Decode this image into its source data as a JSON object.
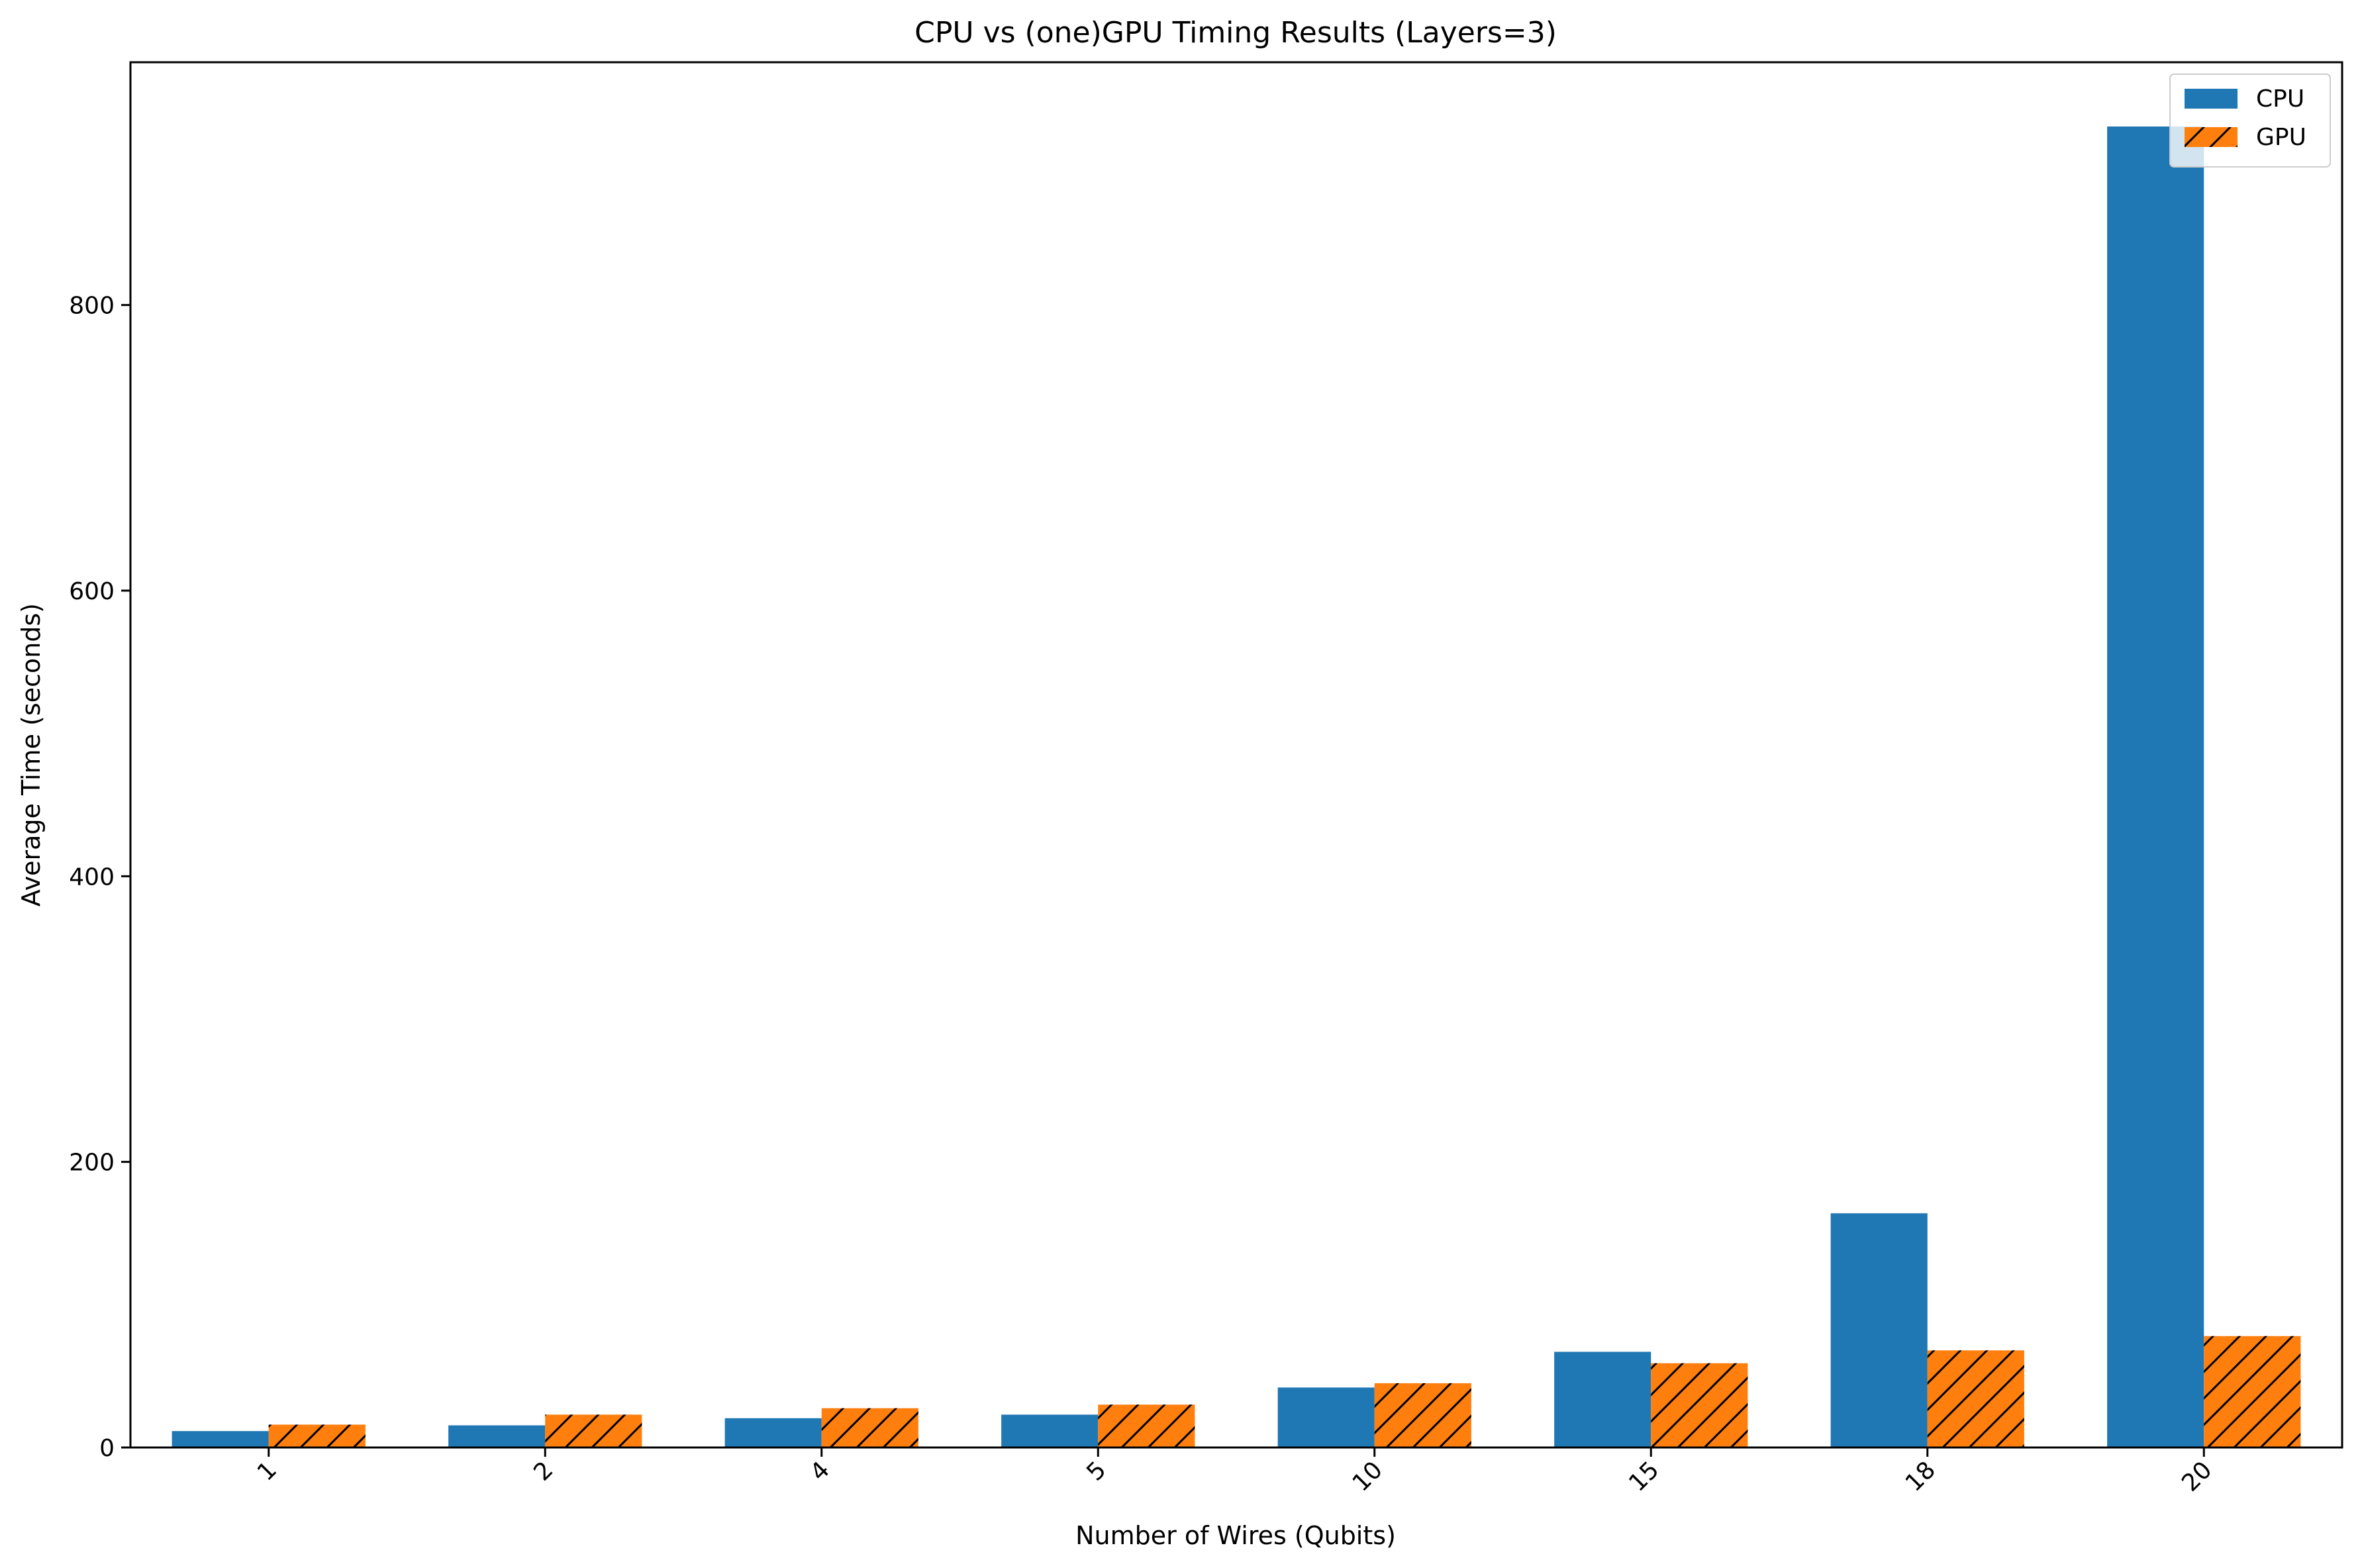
{
  "chart_data": {
    "type": "bar",
    "title": "CPU vs (one)GPU Timing Results (Layers=3)",
    "xlabel": "Number of Wires (Qubits)",
    "ylabel": "Average Time (seconds)",
    "categories": [
      "1",
      "2",
      "4",
      "5",
      "10",
      "15",
      "18",
      "20"
    ],
    "series": [
      {
        "name": "CPU",
        "color": "#1f77b4",
        "hatch": "none",
        "values": [
          11.5,
          15.5,
          20.5,
          23,
          42,
          67,
          164,
          925
        ]
      },
      {
        "name": "GPU",
        "color": "#ff7f0e",
        "hatch": "diagonal",
        "values": [
          16,
          23,
          27.5,
          30,
          45,
          59,
          68,
          78
        ]
      }
    ],
    "ylim": [
      0,
      970
    ],
    "yticks": [
      0,
      200,
      400,
      600,
      800
    ],
    "grid": false,
    "legend": "top-right"
  }
}
